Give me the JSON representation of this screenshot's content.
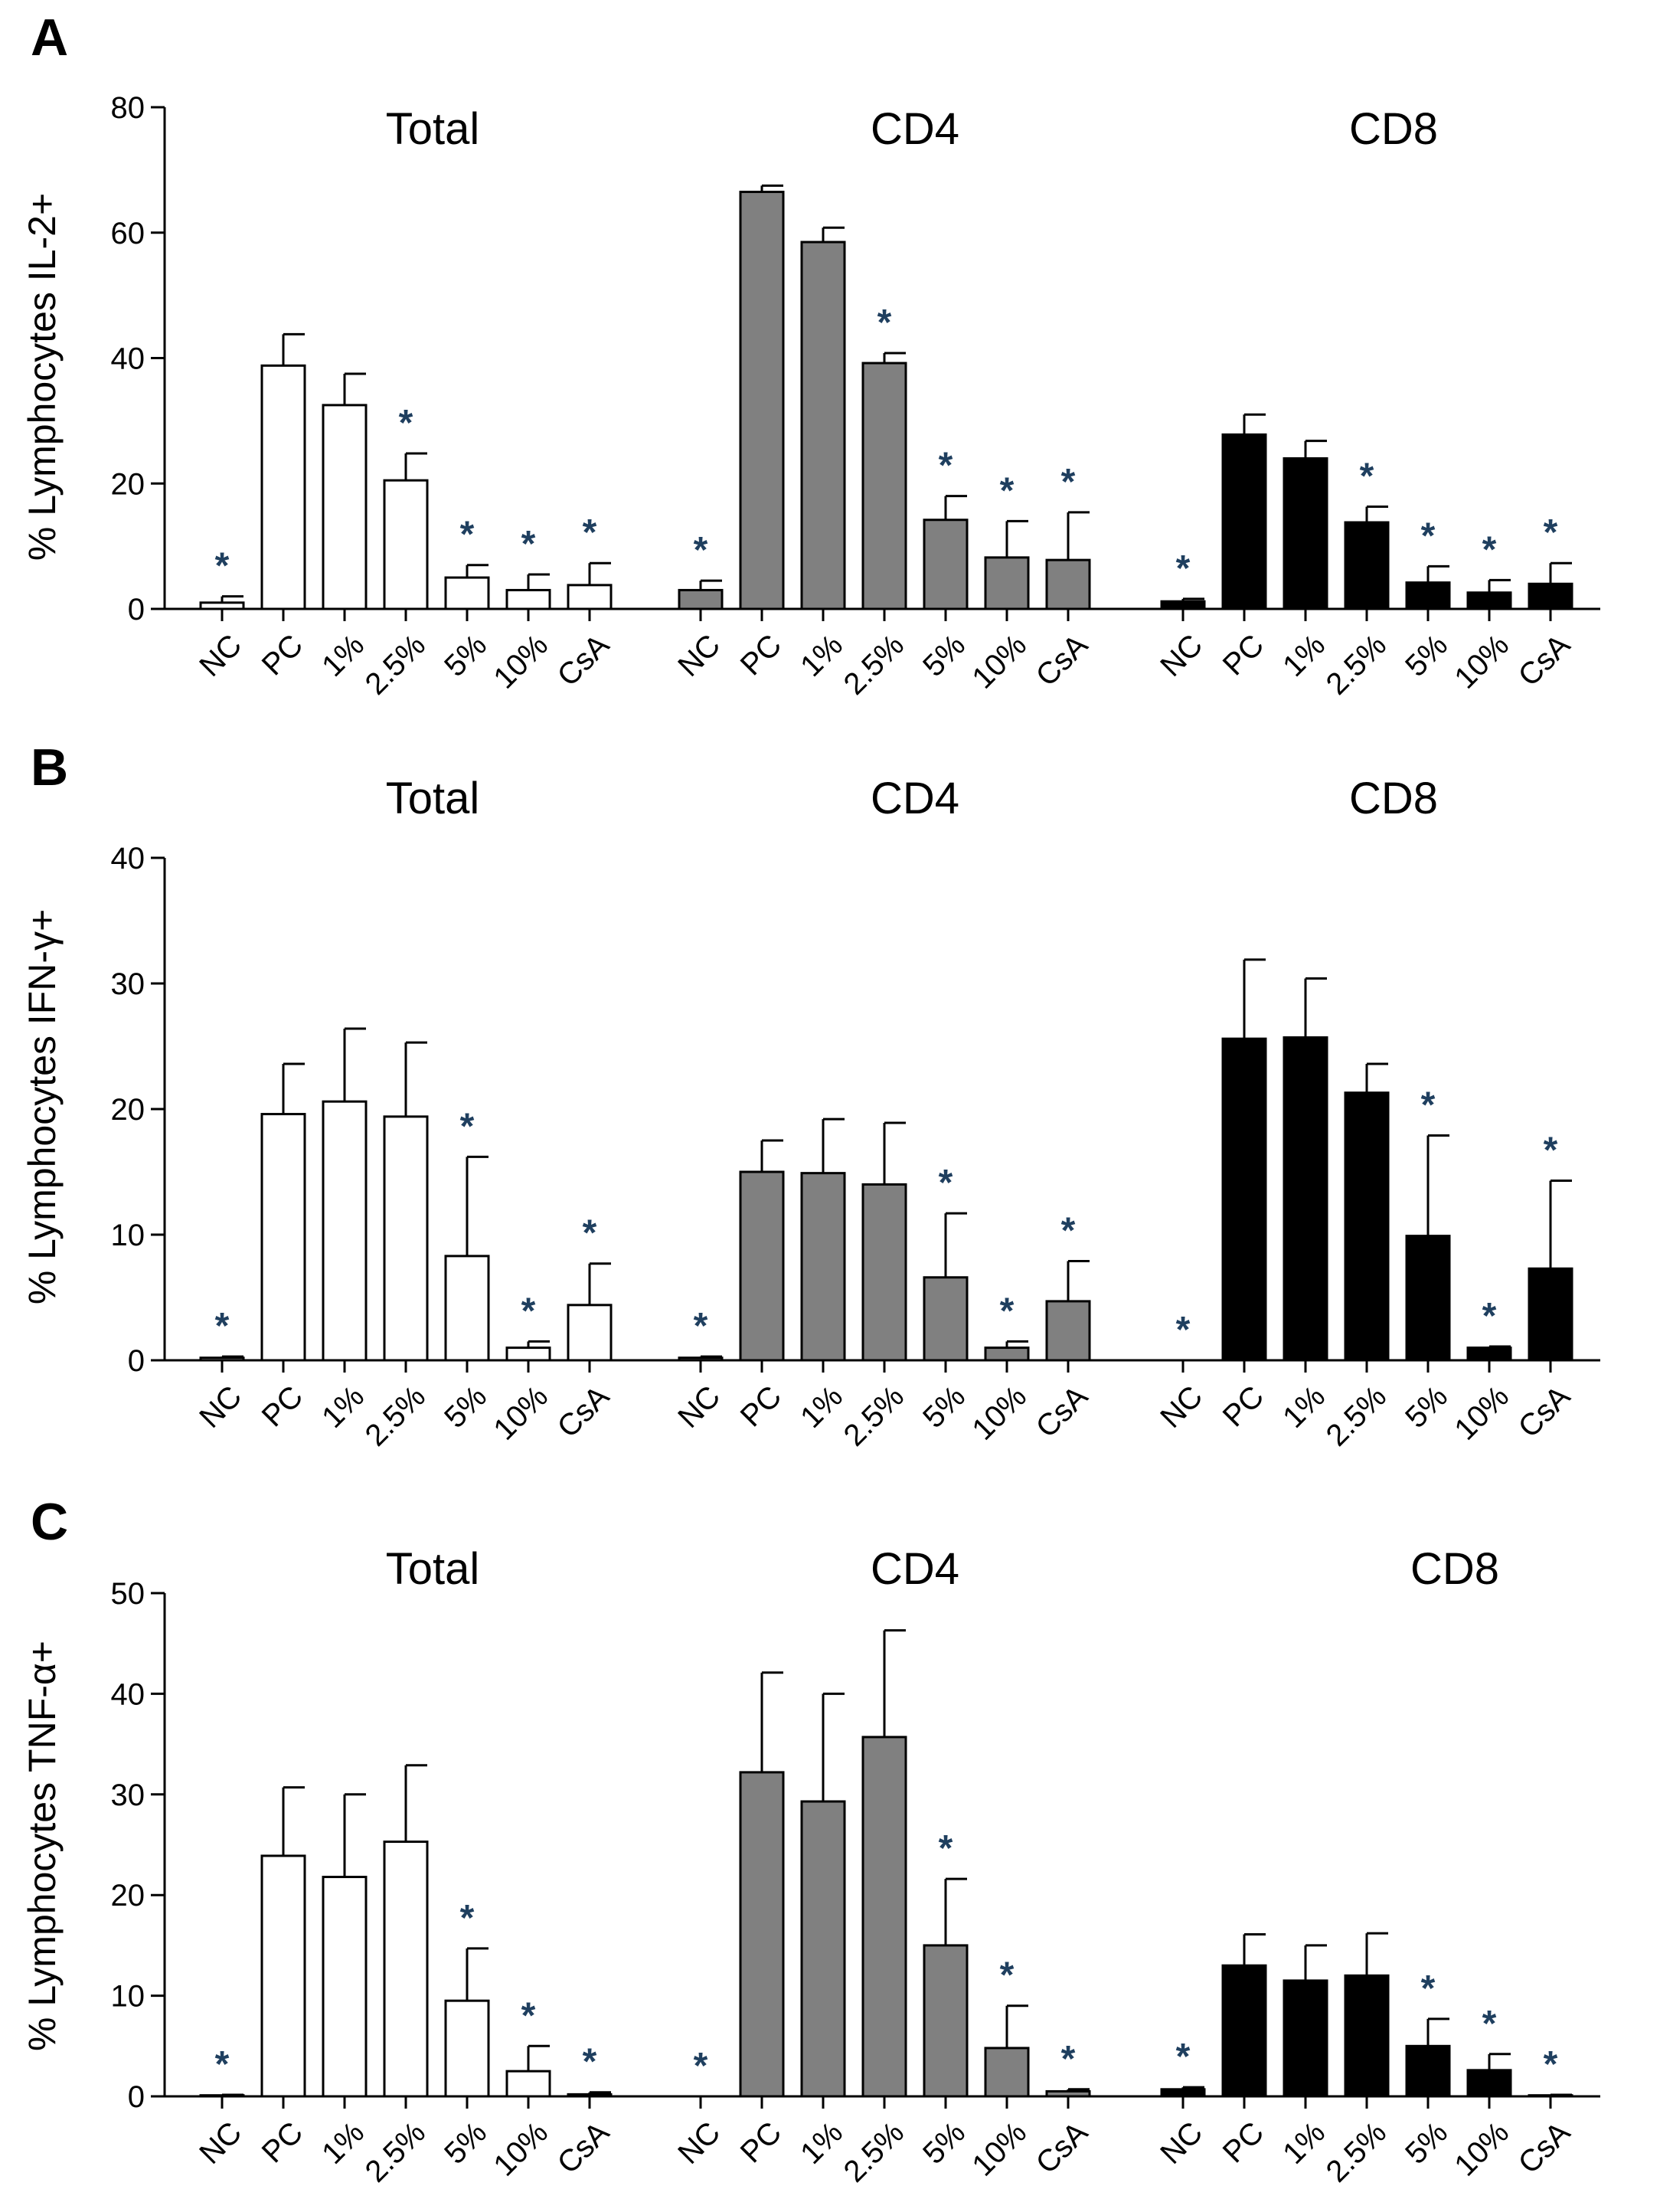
{
  "chart_data": [
    {
      "type": "bar",
      "panel": "A",
      "ylabel": "% Lymphocytes IL-2+",
      "ylim": [
        0,
        80
      ],
      "yticks": [
        0,
        20,
        40,
        60,
        80
      ],
      "groups": [
        "Total",
        "CD4",
        "CD8"
      ],
      "categories": [
        "NC",
        "PC",
        "1%",
        "2.5%",
        "5%",
        "10%",
        "CsA"
      ],
      "series": [
        {
          "name": "Total",
          "fill": "#ffffff",
          "values": [
            1,
            38.8,
            32.5,
            20.5,
            5,
            3,
            3.8
          ],
          "errors": [
            1,
            5,
            5,
            4.3,
            2,
            2.5,
            3.5
          ],
          "significant": [
            true,
            false,
            false,
            true,
            true,
            true,
            true
          ]
        },
        {
          "name": "CD4",
          "fill": "#808080",
          "values": [
            3,
            66.5,
            58.5,
            39.2,
            14.2,
            8.2,
            7.8
          ],
          "errors": [
            1.5,
            1,
            2.3,
            1.6,
            3.8,
            5.8,
            7.6
          ],
          "significant": [
            true,
            false,
            false,
            true,
            true,
            true,
            true
          ]
        },
        {
          "name": "CD8",
          "fill": "#000000",
          "values": [
            1.2,
            27.8,
            24,
            13.8,
            4.2,
            2.6,
            4
          ],
          "errors": [
            0.4,
            3.2,
            2.8,
            2.5,
            2.6,
            2,
            3.3
          ],
          "significant": [
            true,
            false,
            false,
            true,
            true,
            true,
            true
          ]
        }
      ]
    },
    {
      "type": "bar",
      "panel": "B",
      "ylabel": "% Lymphocytes IFN-γ+",
      "ylim": [
        0,
        40
      ],
      "yticks": [
        0,
        10,
        20,
        30,
        40
      ],
      "groups": [
        "Total",
        "CD4",
        "CD8"
      ],
      "categories": [
        "NC",
        "PC",
        "1%",
        "2.5%",
        "5%",
        "10%",
        "CsA"
      ],
      "series": [
        {
          "name": "Total",
          "fill": "#ffffff",
          "values": [
            0.2,
            19.6,
            20.6,
            19.4,
            8.3,
            1,
            4.4
          ],
          "errors": [
            0.1,
            4,
            5.8,
            5.9,
            7.9,
            0.5,
            3.3
          ],
          "significant": [
            true,
            false,
            false,
            false,
            true,
            true,
            true
          ]
        },
        {
          "name": "CD4",
          "fill": "#808080",
          "values": [
            0.2,
            15,
            14.9,
            14,
            6.6,
            1,
            4.7
          ],
          "errors": [
            0.1,
            2.5,
            4.3,
            4.9,
            5.1,
            0.5,
            3.2
          ],
          "significant": [
            true,
            false,
            false,
            false,
            true,
            true,
            true
          ]
        },
        {
          "name": "CD8",
          "fill": "#000000",
          "values": [
            0,
            25.6,
            25.7,
            21.3,
            9.9,
            1,
            7.3
          ],
          "errors": [
            0,
            6.3,
            4.7,
            2.3,
            8,
            0.1,
            7
          ],
          "significant": [
            true,
            false,
            false,
            false,
            true,
            true,
            true
          ]
        }
      ]
    },
    {
      "type": "bar",
      "panel": "C",
      "ylabel": "% Lymphocytes TNF-α+",
      "ylim": [
        0,
        50
      ],
      "yticks": [
        0,
        10,
        20,
        30,
        40,
        50
      ],
      "groups": [
        "Total",
        "CD4",
        "CD8"
      ],
      "categories": [
        "NC",
        "PC",
        "1%",
        "2.5%",
        "5%",
        "10%",
        "CsA"
      ],
      "series": [
        {
          "name": "Total",
          "fill": "#ffffff",
          "values": [
            0.1,
            23.9,
            21.8,
            25.3,
            9.5,
            2.5,
            0.2
          ],
          "errors": [
            0.05,
            6.8,
            8.2,
            7.6,
            5.2,
            2.5,
            0.2
          ],
          "significant": [
            true,
            false,
            false,
            false,
            true,
            true,
            true
          ]
        },
        {
          "name": "CD4",
          "fill": "#808080",
          "values": [
            0,
            32.2,
            29.3,
            35.7,
            15,
            4.8,
            0.5
          ],
          "errors": [
            0,
            9.9,
            10.7,
            10.6,
            6.6,
            4.2,
            0.2
          ],
          "significant": [
            true,
            false,
            false,
            false,
            true,
            true,
            true
          ]
        },
        {
          "name": "CD8",
          "fill": "#000000",
          "values": [
            0.7,
            13,
            11.5,
            12,
            5,
            2.6,
            0.1
          ],
          "errors": [
            0.2,
            3.1,
            3.5,
            4.2,
            2.7,
            1.6,
            0.05
          ],
          "significant": [
            true,
            false,
            false,
            false,
            true,
            true,
            true
          ]
        }
      ]
    }
  ],
  "significance_marker": "*",
  "colors": {
    "star": "#1f3f5f"
  }
}
